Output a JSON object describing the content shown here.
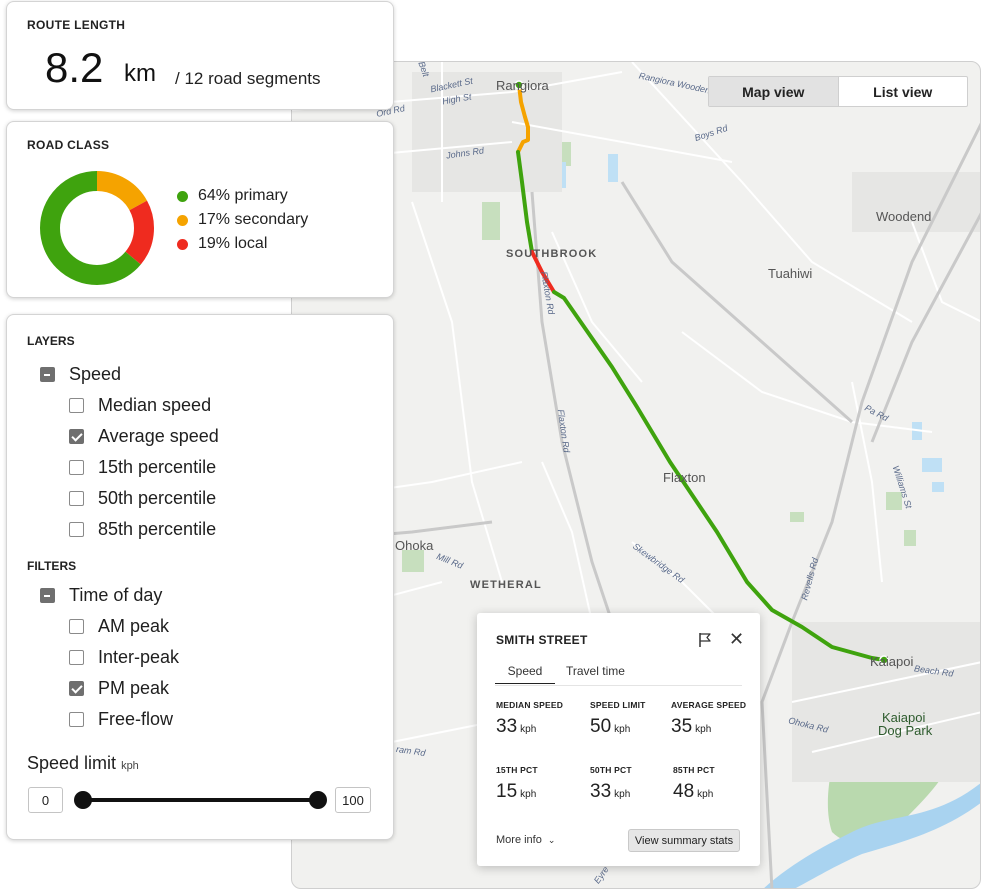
{
  "route_length": {
    "title": "ROUTE LENGTH",
    "value": "8.2",
    "unit": "km",
    "segments": "/ 12 road segments"
  },
  "road_class": {
    "title": "ROAD CLASS",
    "items": [
      {
        "label": "64% primary",
        "percent": 64,
        "color": "#3fa30e"
      },
      {
        "label": "17% secondary",
        "percent": 17,
        "color": "#f5a300"
      },
      {
        "label": "19% local",
        "percent": 19,
        "color": "#ef2b1f"
      }
    ]
  },
  "layers": {
    "title": "LAYERS",
    "group": {
      "label": "Speed",
      "state": "indeterminate"
    },
    "items": [
      {
        "label": "Median speed",
        "checked": false
      },
      {
        "label": "Average speed",
        "checked": true
      },
      {
        "label": "15th percentile",
        "checked": false
      },
      {
        "label": "50th percentile",
        "checked": false
      },
      {
        "label": "85th percentile",
        "checked": false
      }
    ]
  },
  "filters": {
    "title": "FILTERS",
    "group": {
      "label": "Time of day",
      "state": "indeterminate"
    },
    "items": [
      {
        "label": "AM peak",
        "checked": false
      },
      {
        "label": "Inter-peak",
        "checked": false
      },
      {
        "label": "PM peak",
        "checked": true
      },
      {
        "label": "Free-flow",
        "checked": false
      }
    ]
  },
  "speed_limit": {
    "label": "Speed limit",
    "unit": "kph",
    "min": "0",
    "max": "100"
  },
  "view_toggle": {
    "map": "Map view",
    "list": "List view",
    "active": "map"
  },
  "map": {
    "places": {
      "rangiora": "Rangiora",
      "southbrook": "SOUTHBROOK",
      "tuahiwi": "Tuahiwi",
      "woodend": "Woodend",
      "flaxton": "Flaxton",
      "ohoka": "Ohoka",
      "wetheral": "WETHERAL",
      "kaiapoi": "Kaiapoi",
      "dogpark1": "Kaiapoi",
      "dogpark2": "Dog Park"
    },
    "roads": {
      "belt": "Belt",
      "blackett": "Blackett St",
      "high": "High St",
      "ord": "Ord Rd",
      "johns": "Johns Rd",
      "rangiora_woodend": "Rangiora Woodend Rd",
      "boys": "Boys Rd",
      "flaxton1": "Flaxton Rd",
      "flaxton2": "Flaxton Rd",
      "skewbridge": "Skewbridge Rd",
      "mill": "Mill Rd",
      "pa": "Pa Rd",
      "williams": "Williams St",
      "revells": "Revells Rd",
      "beach": "Beach Rd",
      "ohoka_rd": "Ohoka Rd",
      "ram": "ram Rd",
      "eyre": "Eyre"
    }
  },
  "popup": {
    "title": "SMITH STREET",
    "tabs": [
      "Speed",
      "Travel time"
    ],
    "stats": [
      {
        "label": "MEDIAN SPEED",
        "value": "33",
        "unit": "kph"
      },
      {
        "label": "SPEED LIMIT",
        "value": "50",
        "unit": "kph"
      },
      {
        "label": "AVERAGE SPEED",
        "value": "35",
        "unit": "kph"
      },
      {
        "label": "15TH PCT",
        "value": "15",
        "unit": "kph"
      },
      {
        "label": "50TH PCT",
        "value": "33",
        "unit": "kph"
      },
      {
        "label": "85TH PCT",
        "value": "48",
        "unit": "kph"
      }
    ],
    "more_info": "More info",
    "summary_button": "View summary stats"
  }
}
